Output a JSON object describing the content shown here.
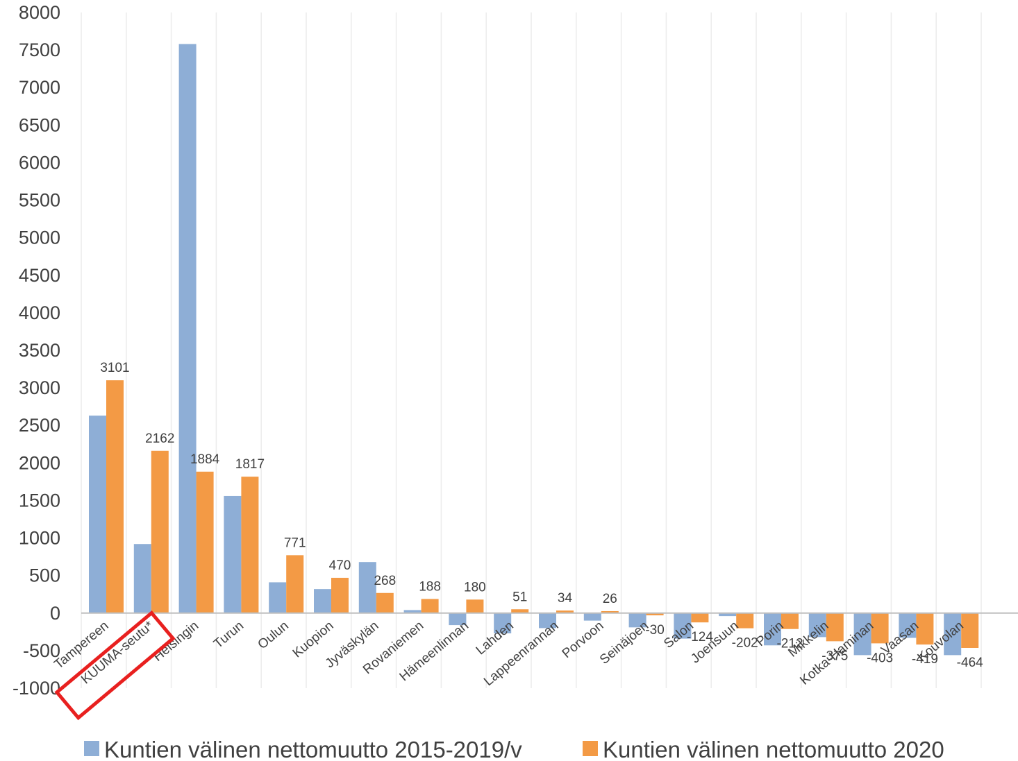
{
  "chart_data": {
    "type": "bar",
    "categories": [
      "Tampereen",
      "KUUMA-seutu*",
      "Helsingin",
      "Turun",
      "Oulun",
      "Kuopion",
      "Jyväskylän",
      "Rovaniemen",
      "Hämeenlinnan",
      "Lahden",
      "Lappeenrannan",
      "Porvoon",
      "Seinäjoen",
      "Salon",
      "Joensuun",
      "Porin",
      "Mikkelin",
      "Kotka-Haminan",
      "Vaasan",
      "Kouvolan"
    ],
    "series": [
      {
        "name": "Kuntien välinen nettomuutto 2015-2019/v",
        "color": "#8eaed6",
        "values": [
          2630,
          920,
          7580,
          1560,
          410,
          320,
          680,
          40,
          -160,
          -270,
          -200,
          -100,
          -190,
          -340,
          -40,
          -430,
          -320,
          -560,
          -330,
          -560
        ]
      },
      {
        "name": "Kuntien välinen nettomuutto 2020",
        "color": "#f39a45",
        "values": [
          3101,
          2162,
          1884,
          1817,
          771,
          470,
          268,
          188,
          180,
          51,
          34,
          26,
          -30,
          -124,
          -202,
          -212,
          -375,
          -403,
          -419,
          -464
        ]
      }
    ],
    "data_labels": [
      "3101",
      "2162",
      "1884",
      "1817",
      "771",
      "470",
      "268",
      "188",
      "180",
      "51",
      "34",
      "26",
      "-30",
      "-124",
      "-202",
      "-212",
      "-375",
      "-403",
      "-419",
      "-464"
    ],
    "ylim": [
      -1000,
      8000
    ],
    "yticks": [
      "-1000",
      "-500",
      "0",
      "500",
      "1000",
      "1500",
      "2000",
      "2500",
      "3000",
      "3500",
      "4000",
      "4500",
      "5000",
      "5500",
      "6000",
      "6500",
      "7000",
      "7500",
      "8000"
    ],
    "grid": "vertical",
    "legend": "bottom",
    "highlight": {
      "category": "KUUMA-seutu*",
      "color": "#e8201f"
    },
    "title": "",
    "xlabel": "",
    "ylabel": ""
  }
}
